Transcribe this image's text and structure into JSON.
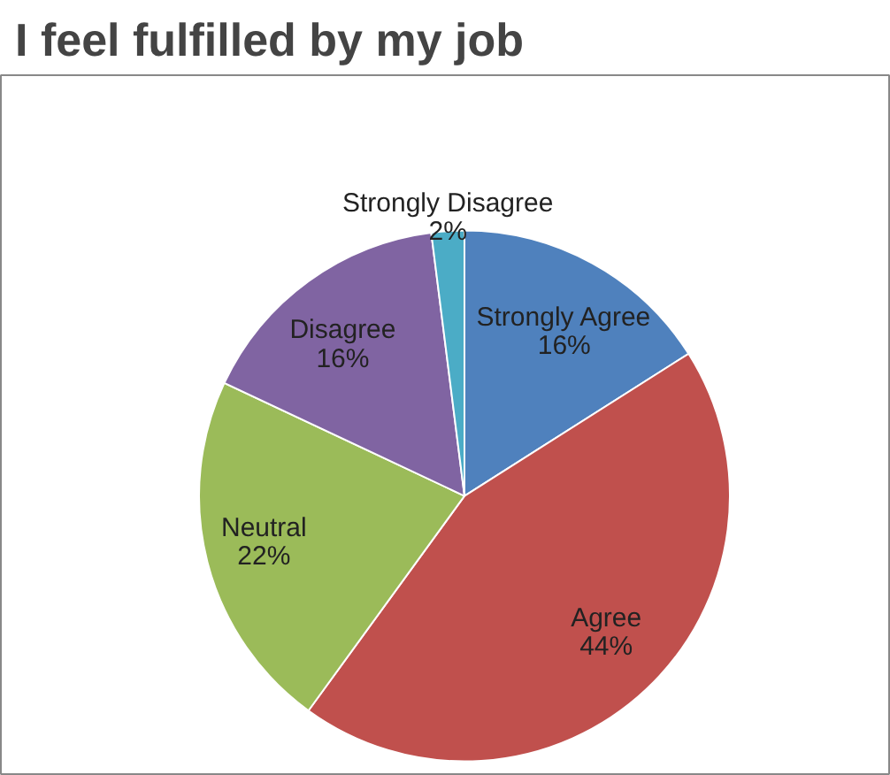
{
  "chart_data": {
    "type": "pie",
    "title": "I feel fulfilled by my job",
    "categories": [
      "Strongly Agree",
      "Agree",
      "Neutral",
      "Disagree",
      "Strongly Disagree"
    ],
    "values": [
      16,
      44,
      22,
      16,
      2
    ],
    "value_labels": [
      "16%",
      "44%",
      "22%",
      "16%",
      "2%"
    ],
    "colors": [
      "#4f81bd",
      "#c0504d",
      "#9bbb59",
      "#8064a2",
      "#4bacc6"
    ],
    "legend": false
  }
}
